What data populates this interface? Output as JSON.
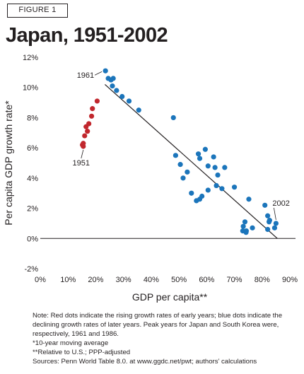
{
  "figure_label": "FIGURE 1",
  "title": "Japan, 1951-2002",
  "notes": [
    "Note: Red dots indicate the rising growth rates of early years; blue dots indicate the declining growth rates of later years. Peak years for Japan and South Korea were, respectively, 1961 and 1986.",
    "*10-year moving average",
    "**Relative to U.S.; PPP-adjusted",
    "Sources: Penn World Table 8.0. at www.ggdc.net/pwt; authors’ calculations"
  ],
  "colors": {
    "red": "#c1272d",
    "blue": "#1b75bb",
    "axis": "#231f20"
  },
  "chart_data": {
    "type": "scatter",
    "title": "Japan, 1951-2002",
    "xlabel": "GDP per capita**",
    "ylabel": "Per capita GDP growth rate*",
    "xlim": [
      0,
      90
    ],
    "ylim": [
      -2,
      12
    ],
    "x_ticks": [
      0,
      10,
      20,
      30,
      40,
      50,
      60,
      70,
      80,
      90
    ],
    "x_tick_labels": [
      "0%",
      "10%",
      "20%",
      "30%",
      "40%",
      "50%",
      "60%",
      "70%",
      "80%",
      "90%"
    ],
    "y_ticks": [
      -2,
      0,
      2,
      4,
      6,
      8,
      10,
      12
    ],
    "y_tick_labels": [
      "-2%",
      "0%",
      "2%",
      "4%",
      "6%",
      "8%",
      "10%",
      "12%"
    ],
    "grid": false,
    "units": "percent",
    "series": [
      {
        "color": "#c1272d",
        "points": [
          [
            15.2,
            6.2
          ],
          [
            15.5,
            6.3
          ],
          [
            15.5,
            6.1
          ],
          [
            16.0,
            6.8
          ],
          [
            16.5,
            7.4
          ],
          [
            17.0,
            7.1
          ],
          [
            17.5,
            7.6
          ],
          [
            18.5,
            8.1
          ],
          [
            18.8,
            8.6
          ],
          [
            20.5,
            9.1
          ]
        ]
      },
      {
        "color": "#1b75bb",
        "points": [
          [
            23.5,
            11.1
          ],
          [
            24.5,
            10.6
          ],
          [
            25.5,
            10.5
          ],
          [
            26.3,
            10.6
          ],
          [
            26.0,
            10.1
          ],
          [
            27.5,
            9.8
          ],
          [
            29.5,
            9.4
          ],
          [
            32.0,
            9.1
          ],
          [
            35.5,
            8.5
          ],
          [
            48.0,
            8.0
          ],
          [
            48.8,
            5.5
          ],
          [
            50.5,
            4.9
          ],
          [
            51.5,
            4.0
          ],
          [
            53.0,
            4.4
          ],
          [
            54.5,
            3.0
          ],
          [
            56.3,
            2.5
          ],
          [
            57.0,
            5.6
          ],
          [
            57.5,
            5.3
          ],
          [
            57.5,
            2.6
          ],
          [
            58.3,
            2.8
          ],
          [
            59.5,
            5.9
          ],
          [
            60.5,
            4.8
          ],
          [
            60.5,
            3.2
          ],
          [
            62.5,
            5.4
          ],
          [
            63.0,
            4.7
          ],
          [
            63.5,
            3.5
          ],
          [
            64.0,
            4.2
          ],
          [
            65.5,
            3.3
          ],
          [
            66.5,
            4.7
          ],
          [
            70.0,
            3.4
          ],
          [
            73.0,
            0.5
          ],
          [
            73.2,
            0.8
          ],
          [
            73.8,
            1.1
          ],
          [
            74.2,
            0.4
          ],
          [
            74.3,
            0.5
          ],
          [
            75.2,
            2.6
          ],
          [
            76.5,
            0.7
          ],
          [
            81.0,
            2.2
          ],
          [
            82.0,
            1.5
          ],
          [
            82.0,
            0.6
          ],
          [
            82.5,
            1.1
          ],
          [
            82.7,
            1.2
          ],
          [
            84.5,
            0.7
          ],
          [
            85.0,
            1.0
          ]
        ]
      }
    ],
    "trendline": {
      "from": [
        23.3,
        10.2
      ],
      "to": [
        85.5,
        0.0
      ]
    },
    "annotations": [
      {
        "text": "1961",
        "x": 23.5,
        "y": 11.1
      },
      {
        "text": "1951",
        "x": 15.5,
        "y": 6.1
      },
      {
        "text": "2002",
        "x": 85.0,
        "y": 1.0
      }
    ]
  }
}
